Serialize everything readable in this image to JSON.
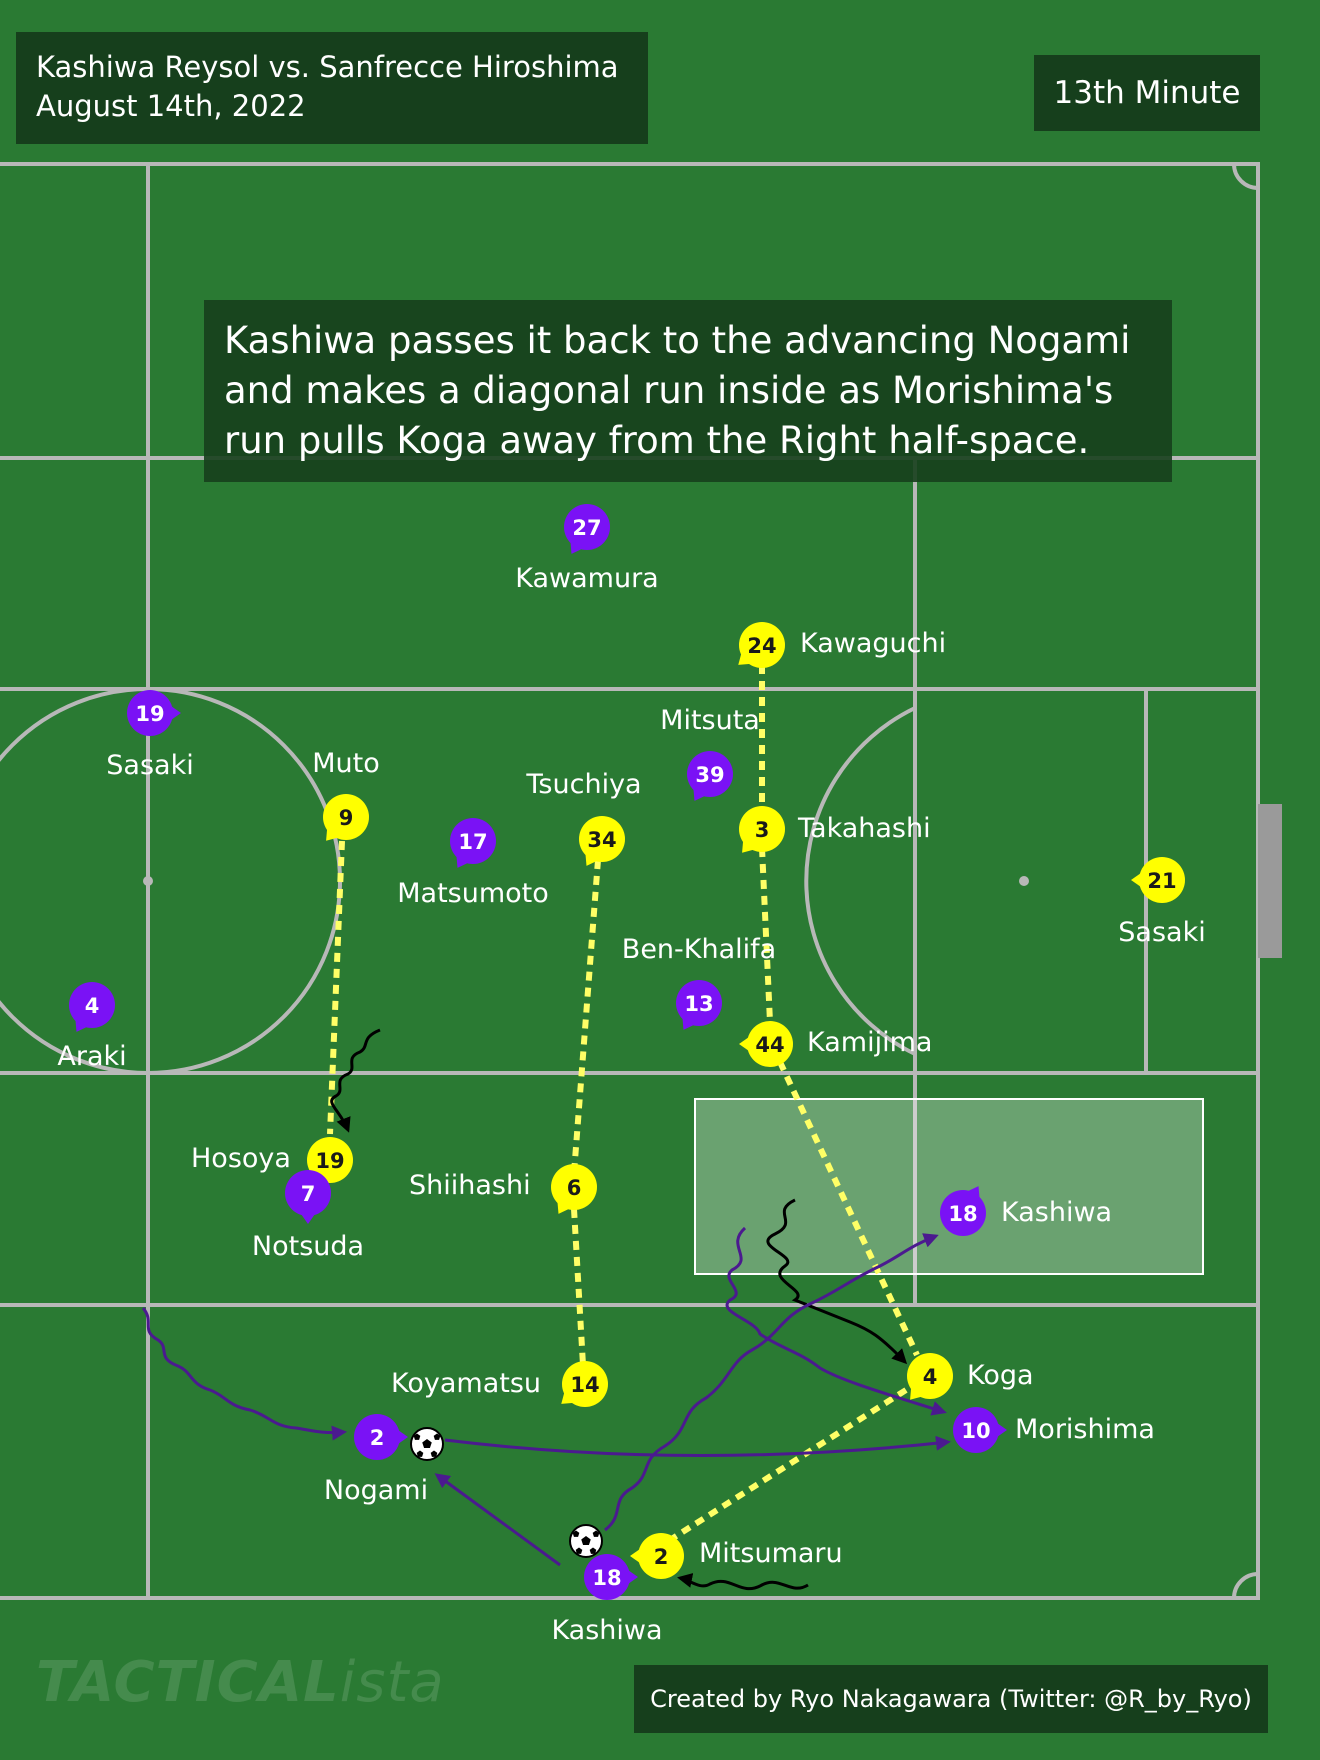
{
  "header": {
    "match": "Kashiwa Reysol vs. Sanfrecce Hiroshima",
    "date": "August 14th, 2022"
  },
  "minute": "13th Minute",
  "annotation": {
    "line1": "Kashiwa passes it back to the advancing Nogami",
    "line2": "and makes a diagonal run inside as Morishima's",
    "line3": "run pulls Koga away from the Right half-space."
  },
  "credit": "Created by Ryo Nakagawara (Twitter: @R_by_Ryo)",
  "watermark": {
    "main": "TACTICAL",
    "script": "ista"
  },
  "colors": {
    "kashiwa": "#ffff00",
    "hiroshima": "#7a12f5",
    "pitch": "#2a7a33",
    "lines": "#b8b8b8",
    "run_arrow": "#4b1a8f"
  },
  "players": [
    {
      "team": "hiroshima",
      "number": "27",
      "name": "Kawamura"
    },
    {
      "team": "kashiwa",
      "number": "24",
      "name": "Kawaguchi"
    },
    {
      "team": "hiroshima",
      "number": "19",
      "name": "Sasaki"
    },
    {
      "team": "kashiwa",
      "number": "9",
      "name": "Muto"
    },
    {
      "team": "hiroshima",
      "number": "17",
      "name": "Matsumoto"
    },
    {
      "team": "kashiwa",
      "number": "34",
      "name": "Tsuchiya"
    },
    {
      "team": "hiroshima",
      "number": "39",
      "name": "Mitsuta"
    },
    {
      "team": "kashiwa",
      "number": "3",
      "name": "Takahashi"
    },
    {
      "team": "kashiwa",
      "number": "21",
      "name": "Sasaki"
    },
    {
      "team": "hiroshima",
      "number": "13",
      "name": "Ben-Khalifa"
    },
    {
      "team": "kashiwa",
      "number": "44",
      "name": "Kamijima"
    },
    {
      "team": "hiroshima",
      "number": "4",
      "name": "Araki"
    },
    {
      "team": "kashiwa",
      "number": "19",
      "name": "Hosoya"
    },
    {
      "team": "hiroshima",
      "number": "7",
      "name": "Notsuda"
    },
    {
      "team": "kashiwa",
      "number": "6",
      "name": "Shiihashi"
    },
    {
      "team": "hiroshima",
      "number": "18",
      "name": "Kashiwa"
    },
    {
      "team": "kashiwa",
      "number": "14",
      "name": "Koyamatsu"
    },
    {
      "team": "kashiwa",
      "number": "4",
      "name": "Koga"
    },
    {
      "team": "hiroshima",
      "number": "2",
      "name": "Nogami"
    },
    {
      "team": "hiroshima",
      "number": "10",
      "name": "Morishima"
    },
    {
      "team": "kashiwa",
      "number": "2",
      "name": "Mitsumaru"
    },
    {
      "team": "hiroshima",
      "number": "18",
      "name": "Kashiwa"
    }
  ]
}
